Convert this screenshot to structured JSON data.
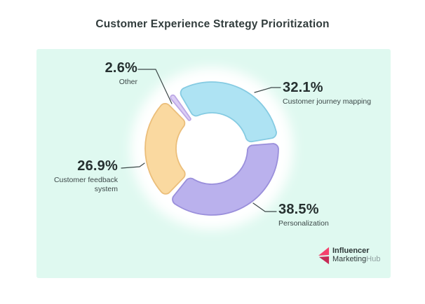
{
  "title": "Customer Experience Strategy Prioritization",
  "panel": {
    "background": "#DFF9F0"
  },
  "chart_data": {
    "type": "pie",
    "subtype": "donut",
    "title": "Customer Experience Strategy Prioritization",
    "start_angle_deg": -32.6,
    "direction": "clockwise",
    "hole_radius_ratio": 0.54,
    "legend_position": "callout-labels",
    "slices": [
      {
        "label": "Customer journey mapping",
        "value": 32.1,
        "display": "32.1%",
        "color": "#AEE3F3",
        "border": "#85CBE2"
      },
      {
        "label": "Personalization",
        "value": 38.5,
        "display": "38.5%",
        "color": "#BAB1ED",
        "border": "#9A8FDB"
      },
      {
        "label": "Customer feedback system",
        "value": 26.9,
        "display": "26.9%",
        "color": "#FAD9A0",
        "border": "#EBBE7A"
      },
      {
        "label": "Other",
        "value": 2.6,
        "display": "2.6%",
        "color": "#DBCDF5",
        "border": "#BCA8E5"
      }
    ]
  },
  "colors": {
    "number_text": "#263030",
    "label_text": "#3C4848",
    "leader_line": "#3C4848",
    "halo": "#FFFFFF"
  },
  "logo": {
    "line1": "Influencer",
    "line2_dark": "Marketing",
    "line2_gray": "Hub",
    "pink_light": "#F5416D",
    "pink_dark": "#C62B56"
  }
}
